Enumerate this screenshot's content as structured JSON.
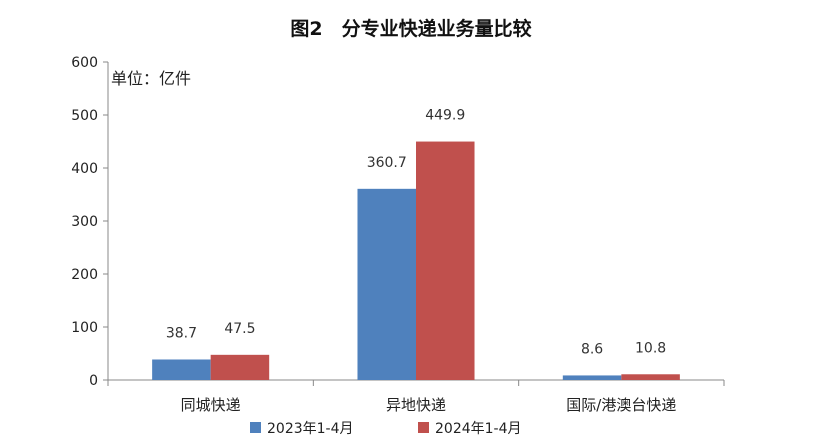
{
  "chart_data": {
    "type": "bar",
    "title": "图2　分专业快递业务量比较",
    "unit_label": "单位：亿件",
    "categories": [
      "同城快递",
      "异地快递",
      "国际/港澳台快递"
    ],
    "series": [
      {
        "name": "2023年1-4月",
        "values": [
          38.7,
          360.7,
          8.6
        ],
        "labels": [
          "38.7",
          "360.7",
          "8.6"
        ],
        "color": "#4f81bd"
      },
      {
        "name": "2024年1-4月",
        "values": [
          47.5,
          449.9,
          10.8
        ],
        "labels": [
          "47.5",
          "449.9",
          "10.8"
        ],
        "color": "#c0504d"
      }
    ],
    "yticks": [
      "0",
      "100",
      "200",
      "300",
      "400",
      "500",
      "600"
    ],
    "ylim": [
      0,
      600
    ],
    "grid": false,
    "legend_position": "bottom"
  }
}
